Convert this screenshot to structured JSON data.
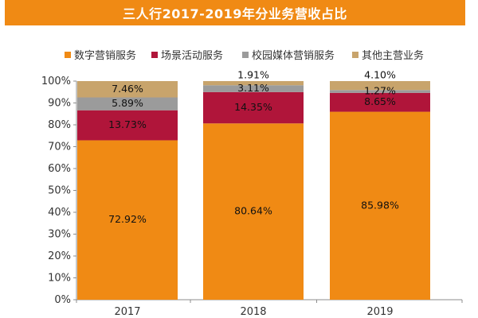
{
  "header": {
    "title": "三人行2017-2019年分业务营收占比"
  },
  "chart_data": {
    "type": "bar",
    "stacked": true,
    "categories": [
      "2017",
      "2018",
      "2019"
    ],
    "ylim": [
      0,
      100
    ],
    "yticks": [
      "0%",
      "10%",
      "20%",
      "30%",
      "40%",
      "50%",
      "60%",
      "70%",
      "80%",
      "90%",
      "100%"
    ],
    "legend_position": "top",
    "series": [
      {
        "name": "数字营销服务",
        "color": "#f08a14",
        "values": [
          72.92,
          80.64,
          85.98
        ],
        "labels": [
          "72.92%",
          "80.64%",
          "85.98%"
        ]
      },
      {
        "name": "场景活动服务",
        "color": "#b0153a",
        "values": [
          13.73,
          14.35,
          8.65
        ],
        "labels": [
          "13.73%",
          "14.35%",
          "8.65%"
        ]
      },
      {
        "name": "校园媒体营销服务",
        "color": "#9b9b9b",
        "values": [
          5.89,
          3.11,
          1.27
        ],
        "labels": [
          "5.89%",
          "3.11%",
          "1.27%"
        ]
      },
      {
        "name": "其他主营业务",
        "color": "#c8a46c",
        "values": [
          7.46,
          1.91,
          4.1
        ],
        "labels": [
          "7.46%",
          "1.91%",
          "4.10%"
        ]
      }
    ]
  }
}
